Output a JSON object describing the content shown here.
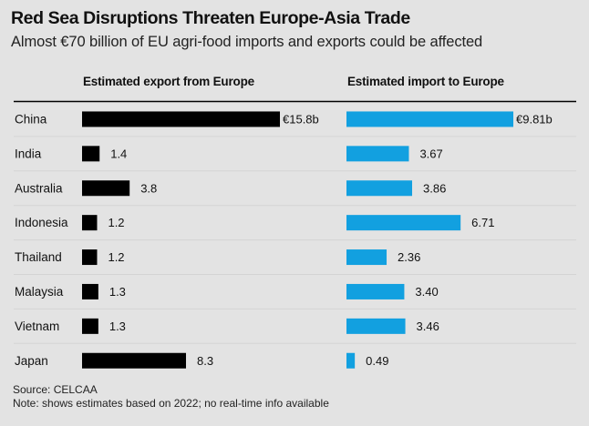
{
  "chart_data": {
    "type": "bar",
    "orientation": "horizontal",
    "title": "Red Sea Disruptions Threaten Europe-Asia Trade",
    "subtitle": "Almost €70 billion of EU agri-food imports and exports could be affected",
    "categories": [
      "China",
      "India",
      "Australia",
      "Indonesia",
      "Thailand",
      "Malaysia",
      "Vietnam",
      "Japan"
    ],
    "unit": "€ billion",
    "series": [
      {
        "name": "Estimated export from Europe",
        "color": "#000000",
        "values": [
          15.8,
          1.4,
          3.8,
          1.2,
          1.2,
          1.3,
          1.3,
          8.3
        ],
        "labels": [
          "€15.8b",
          "1.4",
          "3.8",
          "1.2",
          "1.2",
          "1.3",
          "1.3",
          "8.3"
        ]
      },
      {
        "name": "Estimated import to Europe",
        "color": "#12a0e0",
        "values": [
          9.81,
          3.67,
          3.86,
          6.71,
          2.36,
          3.4,
          3.46,
          0.49
        ],
        "labels": [
          "€9.81b",
          "3.67",
          "3.86",
          "6.71",
          "2.36",
          "3.40",
          "3.46",
          "0.49"
        ]
      }
    ],
    "grid": false,
    "source": "Source: CELCAA",
    "note": "Note: shows estimates based on 2022; no real-time info available"
  },
  "colors": {
    "background": "#e3e3e3",
    "separator": "#d4d4d4",
    "axis_rule": "#000000"
  }
}
